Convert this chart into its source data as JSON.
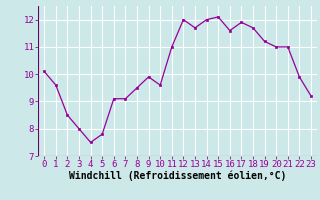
{
  "x": [
    0,
    1,
    2,
    3,
    4,
    5,
    6,
    7,
    8,
    9,
    10,
    11,
    12,
    13,
    14,
    15,
    16,
    17,
    18,
    19,
    20,
    21,
    22,
    23
  ],
  "y": [
    10.1,
    9.6,
    8.5,
    8.0,
    7.5,
    7.8,
    9.1,
    9.1,
    9.5,
    9.9,
    9.6,
    11.0,
    12.0,
    11.7,
    12.0,
    12.1,
    11.6,
    11.9,
    11.7,
    11.2,
    11.0,
    11.0,
    9.9,
    9.2
  ],
  "xlabel": "Windchill (Refroidissement éolien,°C)",
  "ylim": [
    7,
    12.5
  ],
  "yticks": [
    7,
    8,
    9,
    10,
    11,
    12
  ],
  "line_color": "#990099",
  "marker_color": "#990099",
  "bg_color": "#cce8e8",
  "grid_color": "#aacccc",
  "xlabel_fontsize": 7,
  "tick_fontsize": 6.5
}
